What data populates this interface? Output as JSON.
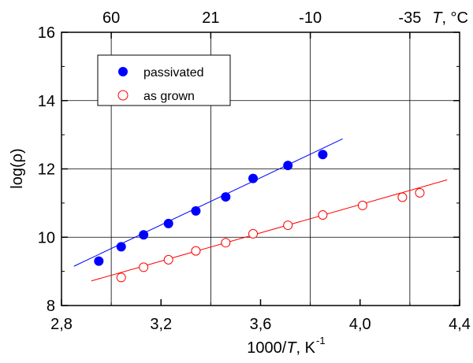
{
  "chart_data": {
    "type": "scatter",
    "xlabel_prefix": "1000/",
    "xlabel_var": "T",
    "xlabel_suffix": ", K",
    "xlabel_sup": "-1",
    "ylabel": "log(ρ)",
    "top_axis_label_var": "T",
    "top_axis_label_suffix": ", °C",
    "xlim": [
      2.8,
      4.4
    ],
    "ylim": [
      8,
      16
    ],
    "x_ticks": [
      2.8,
      3.2,
      3.6,
      4.0,
      4.4
    ],
    "x_tick_labels": [
      "2,8",
      "3,2",
      "3,6",
      "4,0",
      "4,4"
    ],
    "y_ticks": [
      8,
      10,
      12,
      14,
      16
    ],
    "y_tick_labels": [
      "8",
      "10",
      "12",
      "14",
      "16"
    ],
    "top_ticks": [
      3.0,
      3.4,
      3.8,
      4.2
    ],
    "top_tick_labels": [
      "60",
      "21",
      "-10",
      "-35"
    ],
    "grid": true,
    "legend_position": "top-left",
    "series": [
      {
        "name": "passivated",
        "color": "#0000ff",
        "marker": "filled-circle",
        "x": [
          2.95,
          3.04,
          3.13,
          3.23,
          3.34,
          3.46,
          3.57,
          3.71,
          3.85
        ],
        "y": [
          9.3,
          9.72,
          10.07,
          10.4,
          10.77,
          11.18,
          11.72,
          12.1,
          12.42
        ],
        "fit": {
          "x": [
            2.85,
            3.93
          ],
          "y": [
            9.15,
            12.88
          ]
        }
      },
      {
        "name": "as grown",
        "color": "#ff0000",
        "marker": "open-circle",
        "x": [
          3.04,
          3.13,
          3.23,
          3.34,
          3.46,
          3.57,
          3.71,
          3.85,
          4.01,
          4.17,
          4.24
        ],
        "y": [
          8.82,
          9.12,
          9.34,
          9.6,
          9.84,
          10.1,
          10.35,
          10.65,
          10.93,
          11.17,
          11.3
        ],
        "fit": {
          "x": [
            2.92,
            4.35
          ],
          "y": [
            8.72,
            11.68
          ]
        }
      }
    ]
  }
}
